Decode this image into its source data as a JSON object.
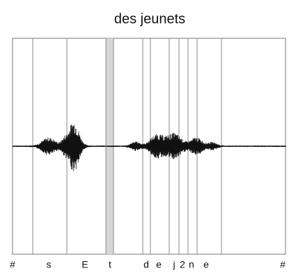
{
  "title": "des jeunets",
  "segments": [
    "#",
    "s",
    "E",
    "t",
    "d",
    "e",
    "j",
    "2",
    "n",
    "e",
    "#"
  ]
}
